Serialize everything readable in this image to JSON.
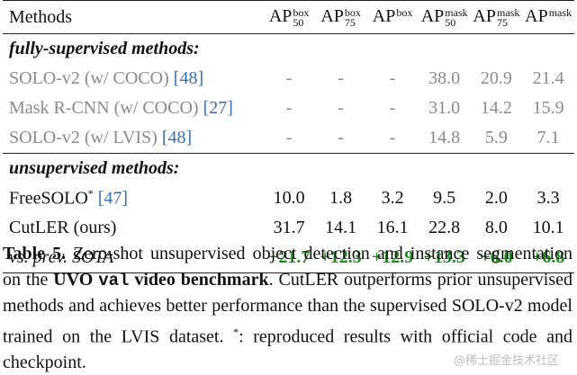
{
  "table": {
    "header": {
      "methods": "Methods",
      "cols": [
        {
          "base": "AP",
          "sup": "box",
          "sub": "50"
        },
        {
          "base": "AP",
          "sup": "box",
          "sub": "75"
        },
        {
          "base": "AP",
          "sup": "box",
          "sub": ""
        },
        {
          "base": "AP",
          "sup": "mask",
          "sub": "50"
        },
        {
          "base": "AP",
          "sup": "mask",
          "sub": "75"
        },
        {
          "base": "AP",
          "sup": "mask",
          "sub": ""
        }
      ]
    },
    "sections": [
      {
        "title": "fully-supervised methods:",
        "rows": [
          {
            "name": "SOLO-v2 (w/ COCO) ",
            "cite": "[48]",
            "sup": "",
            "values": [
              "-",
              "-",
              "-",
              "38.0",
              "20.9",
              "21.4"
            ]
          },
          {
            "name": "Mask R-CNN (w/ COCO) ",
            "cite": "[27]",
            "sup": "",
            "values": [
              "-",
              "-",
              "-",
              "31.0",
              "14.2",
              "15.9"
            ]
          },
          {
            "name": "SOLO-v2 (w/ LVIS) ",
            "cite": "[48]",
            "sup": "",
            "values": [
              "-",
              "-",
              "-",
              "14.8",
              "5.9",
              "7.1"
            ]
          }
        ]
      },
      {
        "title": "unsupervised methods:",
        "rows": [
          {
            "name": "FreeSOLO",
            "sup": "*",
            "cite": "[47]",
            "values": [
              "10.0",
              "1.8",
              "3.2",
              "9.5",
              "2.0",
              "3.3"
            ]
          },
          {
            "name": "CutLER (ours)",
            "sup": "",
            "cite": "",
            "values": [
              "31.7",
              "14.1",
              "16.1",
              "22.8",
              "8.0",
              "10.1"
            ]
          }
        ]
      }
    ],
    "delta": {
      "label": "vs. prev. SOTA",
      "values": [
        "+21.7",
        "+12.3",
        "+12.9",
        "+13.3",
        "+6.0",
        "+6.8"
      ]
    }
  },
  "caption": {
    "label": "Table 5.",
    "part1": "Zero-shot unsupervised object detection and instance segmentation on the ",
    "bold1": "UVO ",
    "mono": "val",
    "bold2": " video benchmark",
    "part2": ". CutLER outperforms prior unsupervised methods and achieves better performance than the supervised SOLO-v2 model trained on the LVIS dataset. ",
    "star": "*",
    "part3": ": reproduced results with official code and checkpoint."
  },
  "colors": {
    "gray": "#8a8a8a",
    "green": "#1f8b1f",
    "cite": "#3a6fb0"
  },
  "watermark": "@稀土掘金技术社区"
}
